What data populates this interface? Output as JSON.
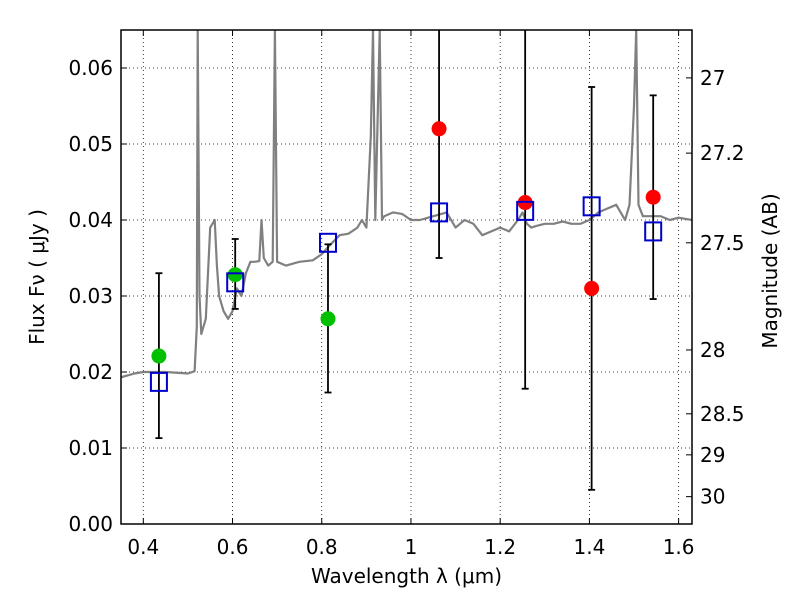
{
  "chart_data": {
    "type": "scatter",
    "xlabel": "Wavelength  λ (μm)",
    "ylabel": "Flux  Fν  ( μJy )",
    "y2label": "Magnitude (AB)",
    "xlim": [
      0.35,
      1.63
    ],
    "ylim": [
      0.0,
      0.065
    ],
    "grid": true,
    "colors": {
      "spectrum": "#808080",
      "green": "#00c000",
      "red": "#ff0000",
      "model": "#0000cc",
      "errorbar": "#000000"
    },
    "x_ticks": [
      {
        "value": 0.4,
        "label": "0.4"
      },
      {
        "value": 0.6,
        "label": "0.6"
      },
      {
        "value": 0.8,
        "label": "0.8"
      },
      {
        "value": 1.0,
        "label": "1"
      },
      {
        "value": 1.2,
        "label": "1.2"
      },
      {
        "value": 1.4,
        "label": "1.4"
      },
      {
        "value": 1.6,
        "label": "1.6"
      }
    ],
    "y_ticks": [
      {
        "value": 0.0,
        "label": "0.00"
      },
      {
        "value": 0.01,
        "label": "0.01"
      },
      {
        "value": 0.02,
        "label": "0.02"
      },
      {
        "value": 0.03,
        "label": "0.03"
      },
      {
        "value": 0.04,
        "label": "0.04"
      },
      {
        "value": 0.05,
        "label": "0.05"
      },
      {
        "value": 0.06,
        "label": "0.06"
      }
    ],
    "magnitude_ticks": [
      {
        "flux": 0.0587,
        "label": "27"
      },
      {
        "flux": 0.0488,
        "label": "27.2"
      },
      {
        "flux": 0.037,
        "label": "27.5"
      },
      {
        "flux": 0.0229,
        "label": "28"
      },
      {
        "flux": 0.0145,
        "label": "28.5"
      },
      {
        "flux": 0.0091,
        "label": "29"
      },
      {
        "flux": 0.0036,
        "label": "30"
      }
    ],
    "series": [
      {
        "marker": "circle",
        "color": "green",
        "points": [
          {
            "x": 0.435,
            "y": 0.0221
          },
          {
            "x": 0.606,
            "y": 0.0328
          },
          {
            "x": 0.814,
            "y": 0.027
          }
        ]
      },
      {
        "marker": "circle",
        "color": "red",
        "points": [
          {
            "x": 1.063,
            "y": 0.052
          },
          {
            "x": 1.256,
            "y": 0.0423
          },
          {
            "x": 1.405,
            "y": 0.031
          },
          {
            "x": 1.543,
            "y": 0.043
          }
        ]
      },
      {
        "marker": "square-open",
        "color": "model",
        "points": [
          {
            "x": 0.435,
            "y": 0.0187
          },
          {
            "x": 0.606,
            "y": 0.0318
          },
          {
            "x": 0.814,
            "y": 0.037
          },
          {
            "x": 1.063,
            "y": 0.041
          },
          {
            "x": 1.256,
            "y": 0.0412
          },
          {
            "x": 1.405,
            "y": 0.0418
          },
          {
            "x": 1.543,
            "y": 0.0385
          }
        ]
      }
    ],
    "error_bars": [
      {
        "x": 0.435,
        "low": 0.0113,
        "high": 0.033
      },
      {
        "x": 0.606,
        "low": 0.0283,
        "high": 0.0375
      },
      {
        "x": 0.814,
        "low": 0.0173,
        "high": 0.0368
      },
      {
        "x": 1.063,
        "low": 0.035,
        "high": 0.065
      },
      {
        "x": 1.256,
        "low": 0.0178,
        "high": 0.065
      },
      {
        "x": 1.405,
        "low": 0.0045,
        "high": 0.0575
      },
      {
        "x": 1.543,
        "low": 0.0296,
        "high": 0.0564
      }
    ],
    "spectrum": [
      [
        0.35,
        0.0193
      ],
      [
        0.38,
        0.0198
      ],
      [
        0.4,
        0.02
      ],
      [
        0.45,
        0.02
      ],
      [
        0.5,
        0.0198
      ],
      [
        0.515,
        0.0201
      ],
      [
        0.52,
        0.026
      ],
      [
        0.522,
        0.065
      ],
      [
        0.526,
        0.03
      ],
      [
        0.53,
        0.025
      ],
      [
        0.54,
        0.027
      ],
      [
        0.55,
        0.039
      ],
      [
        0.56,
        0.04
      ],
      [
        0.565,
        0.034
      ],
      [
        0.57,
        0.03
      ],
      [
        0.58,
        0.028
      ],
      [
        0.59,
        0.027
      ],
      [
        0.6,
        0.028
      ],
      [
        0.61,
        0.031
      ],
      [
        0.62,
        0.03
      ],
      [
        0.63,
        0.033
      ],
      [
        0.64,
        0.0345
      ],
      [
        0.65,
        0.0345
      ],
      [
        0.66,
        0.0346
      ],
      [
        0.665,
        0.04
      ],
      [
        0.67,
        0.035
      ],
      [
        0.68,
        0.034
      ],
      [
        0.69,
        0.0345
      ],
      [
        0.695,
        0.065
      ],
      [
        0.7,
        0.0345
      ],
      [
        0.72,
        0.034
      ],
      [
        0.75,
        0.0345
      ],
      [
        0.78,
        0.0347
      ],
      [
        0.8,
        0.0355
      ],
      [
        0.82,
        0.0368
      ],
      [
        0.84,
        0.038
      ],
      [
        0.86,
        0.0382
      ],
      [
        0.88,
        0.039
      ],
      [
        0.89,
        0.04
      ],
      [
        0.9,
        0.039
      ],
      [
        0.91,
        0.051
      ],
      [
        0.915,
        0.065
      ],
      [
        0.92,
        0.04
      ],
      [
        0.93,
        0.065
      ],
      [
        0.935,
        0.04
      ],
      [
        0.94,
        0.0405
      ],
      [
        0.96,
        0.041
      ],
      [
        0.98,
        0.0408
      ],
      [
        1.0,
        0.04
      ],
      [
        1.02,
        0.04
      ],
      [
        1.05,
        0.0405
      ],
      [
        1.08,
        0.041
      ],
      [
        1.1,
        0.039
      ],
      [
        1.12,
        0.04
      ],
      [
        1.14,
        0.0395
      ],
      [
        1.16,
        0.038
      ],
      [
        1.18,
        0.0385
      ],
      [
        1.2,
        0.039
      ],
      [
        1.22,
        0.0385
      ],
      [
        1.24,
        0.04
      ],
      [
        1.25,
        0.041
      ],
      [
        1.26,
        0.0395
      ],
      [
        1.27,
        0.039
      ],
      [
        1.28,
        0.0392
      ],
      [
        1.3,
        0.0395
      ],
      [
        1.32,
        0.0395
      ],
      [
        1.34,
        0.0398
      ],
      [
        1.36,
        0.0395
      ],
      [
        1.38,
        0.0395
      ],
      [
        1.4,
        0.04
      ],
      [
        1.42,
        0.041
      ],
      [
        1.44,
        0.0415
      ],
      [
        1.46,
        0.042
      ],
      [
        1.48,
        0.04
      ],
      [
        1.49,
        0.042
      ],
      [
        1.5,
        0.055
      ],
      [
        1.505,
        0.065
      ],
      [
        1.51,
        0.042
      ],
      [
        1.52,
        0.0405
      ],
      [
        1.54,
        0.0405
      ],
      [
        1.56,
        0.0405
      ],
      [
        1.58,
        0.04
      ],
      [
        1.6,
        0.0403
      ],
      [
        1.63,
        0.04
      ]
    ]
  }
}
